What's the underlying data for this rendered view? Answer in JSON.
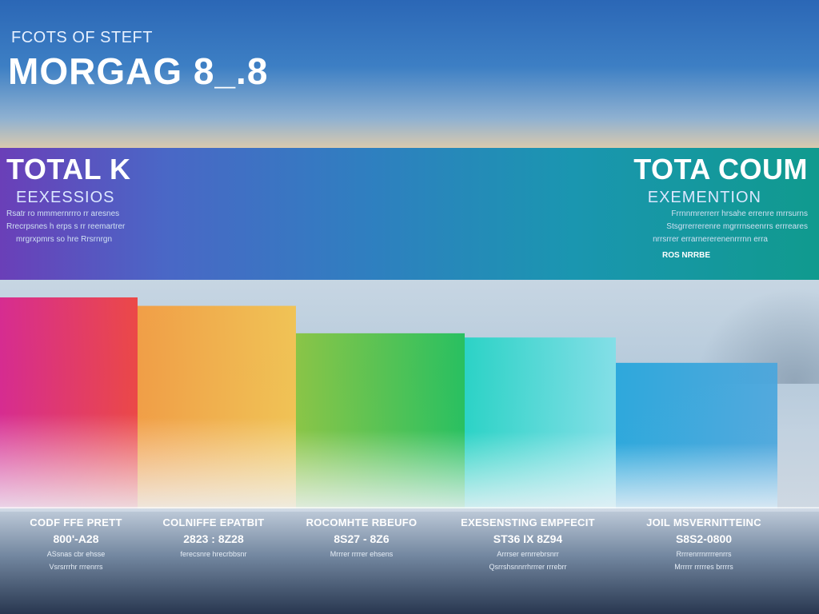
{
  "header": {
    "kicker": "FCOTS OF STEFT",
    "title": "MORGAG 8_.8"
  },
  "left_panel": {
    "title": "TOTAL K",
    "subtitle": "EEXESSIOS",
    "lines": [
      "Rsatr ro mmmernrrro rr aresnes",
      "Rrecrpsnes h erps s rr reemartrer",
      "mrgrxpmrs so hre Rrsrnrgn"
    ]
  },
  "right_panel": {
    "title": "TOTA COUM",
    "subtitle": "EXEMENTION",
    "lines": [
      "Frrnnmrerrerr hrsahe errenre mrrsurns",
      "Stsgrrerrerenre mgrrrnseenrrs errreares",
      "nrrsrrer errarnererenenrrrnn erra"
    ],
    "note": "ROS NRRBE"
  },
  "chart_data": {
    "type": "bar",
    "categories": [
      "CODF FFE PRETT",
      "COLNIFFE EPATBIT",
      "ROCOMHTE RBEUFO",
      "EXESENSTING EMPFECIT",
      "JOIL MSVERNITTEINC"
    ],
    "values": [
      100,
      96,
      83,
      81,
      69
    ],
    "ylim": [
      0,
      100
    ],
    "value_labels": [
      "800'-A28",
      "2823 : 8Z28",
      "8S27 - 8Z6",
      "ST36 IX 8Z94",
      "S8S2-0800"
    ],
    "sub_labels": [
      [
        "ASsnas cbr ehsse",
        "Vsrsrrrhr rrrenrrs"
      ],
      [
        "ferecsnre hrecrbbsnr"
      ],
      [
        "Mrrrer rrrrer ehsens"
      ],
      [
        "Arrrser ernrrebrsnrr",
        "Qsrrshsnnrrhrrrer rrrebrr"
      ],
      [
        "Rrrrenrrnrrrrenrrs",
        "Mrrrrr rrrrres brrrrs"
      ]
    ],
    "colors": [
      [
        "#d81e8a",
        "#ef3d3a"
      ],
      [
        "#f59a3a",
        "#f4c24a"
      ],
      [
        "#86c43a",
        "#1cbf56"
      ],
      [
        "#1fd3c4",
        "#7fe0e8"
      ],
      [
        "#22a5dc",
        "#4aa6dd"
      ]
    ]
  }
}
